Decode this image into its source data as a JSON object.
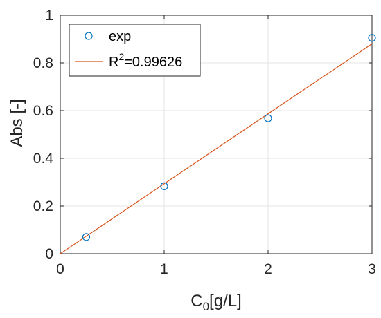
{
  "chart_data": {
    "type": "scatter",
    "xlabel": "C",
    "xlabel_subscript": "0",
    "xlabel_suffix": "[g/L]",
    "ylabel": "Abs [-]",
    "xlim": [
      0,
      3
    ],
    "ylim": [
      0,
      1
    ],
    "xticks": [
      "0",
      "1",
      "2",
      "3"
    ],
    "yticks": [
      "0",
      "0.2",
      "0.4",
      "0.6",
      "0.8",
      "1"
    ],
    "grid": true,
    "legend_position": "top-left",
    "series": [
      {
        "name": "exp",
        "kind": "scatter",
        "marker": "circle-open",
        "color": "#0072BD",
        "points": [
          {
            "x": 0.25,
            "y": 0.07
          },
          {
            "x": 1.0,
            "y": 0.283
          },
          {
            "x": 2.0,
            "y": 0.568
          },
          {
            "x": 3.0,
            "y": 0.905
          }
        ]
      },
      {
        "name_prefix": "R",
        "name_superscript": "2",
        "name_suffix": "=0.99626",
        "kind": "line",
        "color": "#D95319",
        "points": [
          {
            "x": 0,
            "y": 0
          },
          {
            "x": 3.0,
            "y": 0.88
          }
        ]
      }
    ]
  }
}
